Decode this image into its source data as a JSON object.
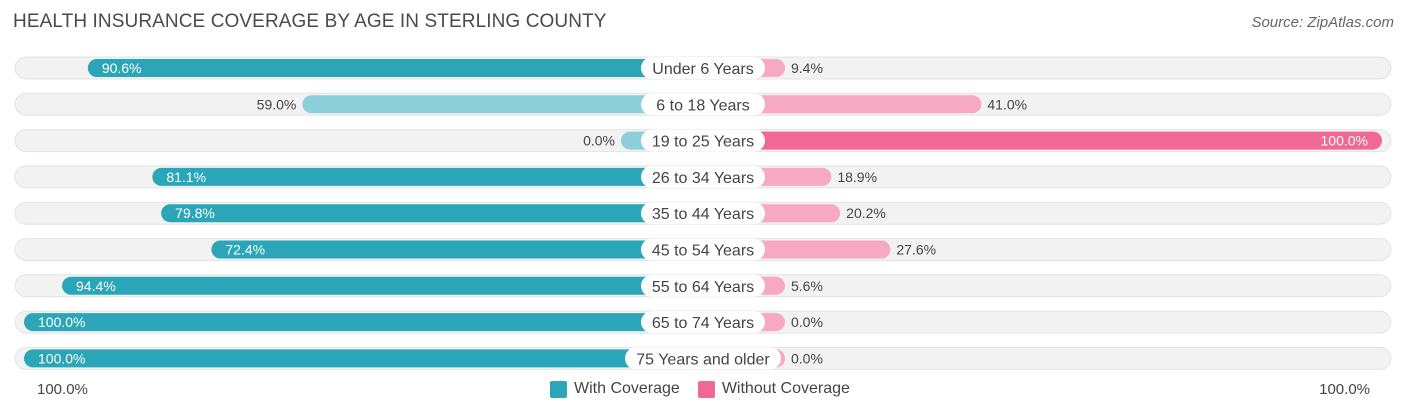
{
  "header": {
    "title": "HEALTH INSURANCE COVERAGE BY AGE IN STERLING COUNTY",
    "source": "Source: ZipAtlas.com"
  },
  "axis": {
    "left_label": "100.0%",
    "right_label": "100.0%"
  },
  "legend": {
    "with_label": "With Coverage",
    "without_label": "Without Coverage"
  },
  "colors": {
    "with_strong": "#2aa6b8",
    "with_light": "#8ccfda",
    "without_strong": "#f06894",
    "without_light": "#f7a8c2",
    "track": "#f2f2f2"
  },
  "chart_data": {
    "type": "bar",
    "orientation": "horizontal-diverging",
    "title": "HEALTH INSURANCE COVERAGE BY AGE IN STERLING COUNTY",
    "categories": [
      "Under 6 Years",
      "6 to 18 Years",
      "19 to 25 Years",
      "26 to 34 Years",
      "35 to 44 Years",
      "45 to 54 Years",
      "55 to 64 Years",
      "65 to 74 Years",
      "75 Years and older"
    ],
    "series": [
      {
        "name": "With Coverage",
        "values": [
          90.6,
          59.0,
          0.0,
          81.1,
          79.8,
          72.4,
          94.4,
          100.0,
          100.0
        ],
        "labels": [
          "90.6%",
          "59.0%",
          "0.0%",
          "81.1%",
          "79.8%",
          "72.4%",
          "94.4%",
          "100.0%",
          "100.0%"
        ]
      },
      {
        "name": "Without Coverage",
        "values": [
          9.4,
          41.0,
          100.0,
          18.9,
          20.2,
          27.6,
          5.6,
          0.0,
          0.0
        ],
        "labels": [
          "9.4%",
          "41.0%",
          "100.0%",
          "18.9%",
          "20.2%",
          "27.6%",
          "5.6%",
          "0.0%",
          "0.0%"
        ]
      }
    ],
    "xlim": [
      -100,
      100
    ],
    "legend_position": "bottom-center"
  }
}
